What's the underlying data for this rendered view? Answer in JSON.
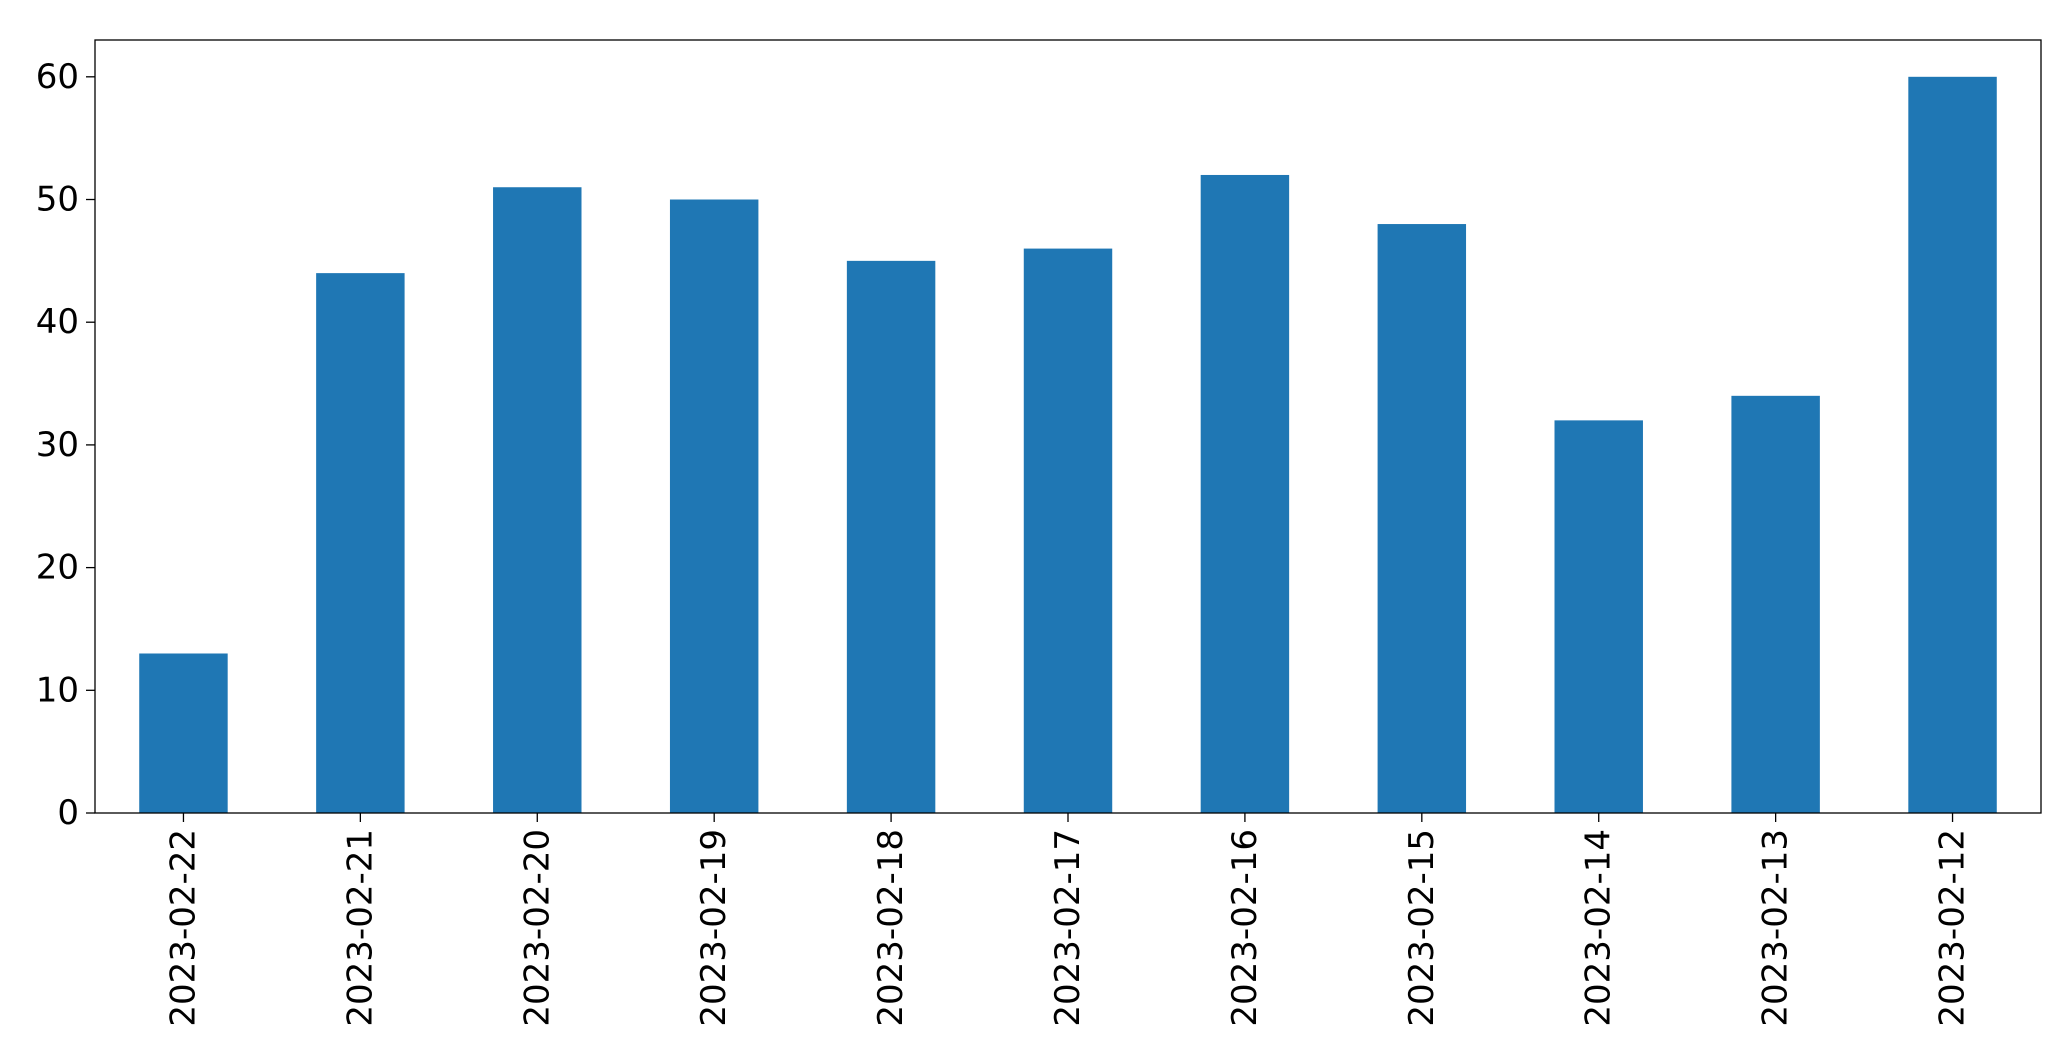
{
  "chart_data": {
    "type": "bar",
    "categories": [
      "2023-02-22",
      "2023-02-21",
      "2023-02-20",
      "2023-02-19",
      "2023-02-18",
      "2023-02-17",
      "2023-02-16",
      "2023-02-15",
      "2023-02-14",
      "2023-02-13",
      "2023-02-12"
    ],
    "values": [
      13,
      44,
      51,
      50,
      45,
      46,
      52,
      48,
      32,
      34,
      60
    ],
    "title": "",
    "xlabel": "",
    "ylabel": "",
    "ylim": [
      0,
      63
    ],
    "yticks": [
      0,
      10,
      20,
      30,
      40,
      50,
      60
    ],
    "grid": false,
    "legend": "none",
    "bar_color": "#1f77b4",
    "xtick_rotation": "vertical"
  }
}
